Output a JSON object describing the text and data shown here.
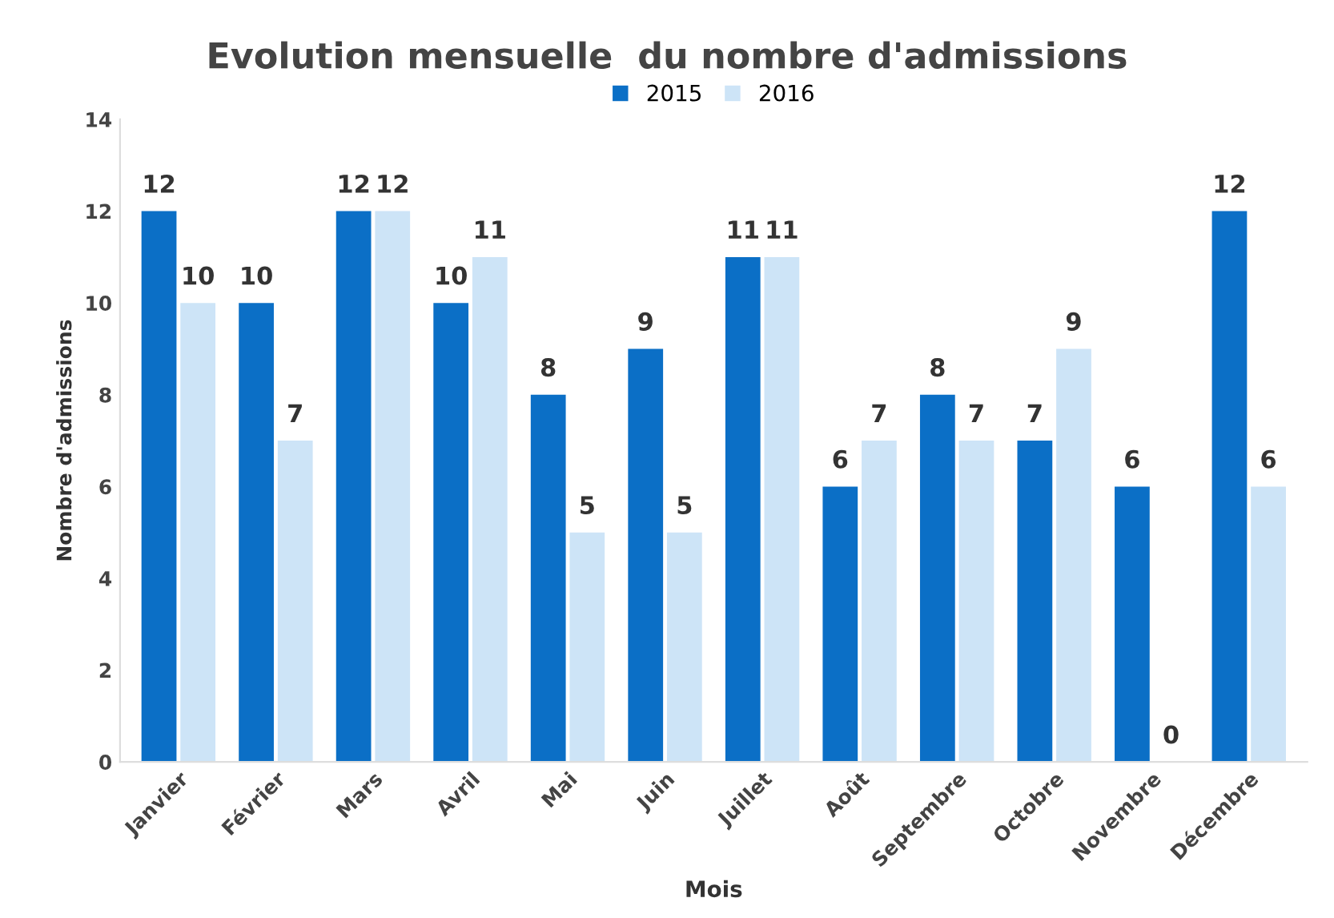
{
  "chart_data": {
    "type": "bar",
    "title": "Evolution mensuelle  du nombre d'admissions",
    "xlabel": "Mois",
    "ylabel": "Nombre d'admissions",
    "categories": [
      "Janvier",
      "Février",
      "Mars",
      "Avril",
      "Mai",
      "Juin",
      "Juillet",
      "Août",
      "Septembre",
      "Octobre",
      "Novembre",
      "Décembre"
    ],
    "series": [
      {
        "name": "2015",
        "color": "#0b6fc6",
        "values": [
          12,
          10,
          12,
          10,
          8,
          9,
          11,
          6,
          8,
          7,
          6,
          12
        ]
      },
      {
        "name": "2016",
        "color": "#cde4f7",
        "values": [
          10,
          7,
          12,
          11,
          5,
          5,
          11,
          7,
          7,
          9,
          0,
          6
        ]
      }
    ],
    "ylim": [
      0,
      14
    ],
    "yticks": [
      0,
      2,
      4,
      6,
      8,
      10,
      12,
      14
    ],
    "data_labels": true,
    "legend": "top",
    "grid": false
  }
}
